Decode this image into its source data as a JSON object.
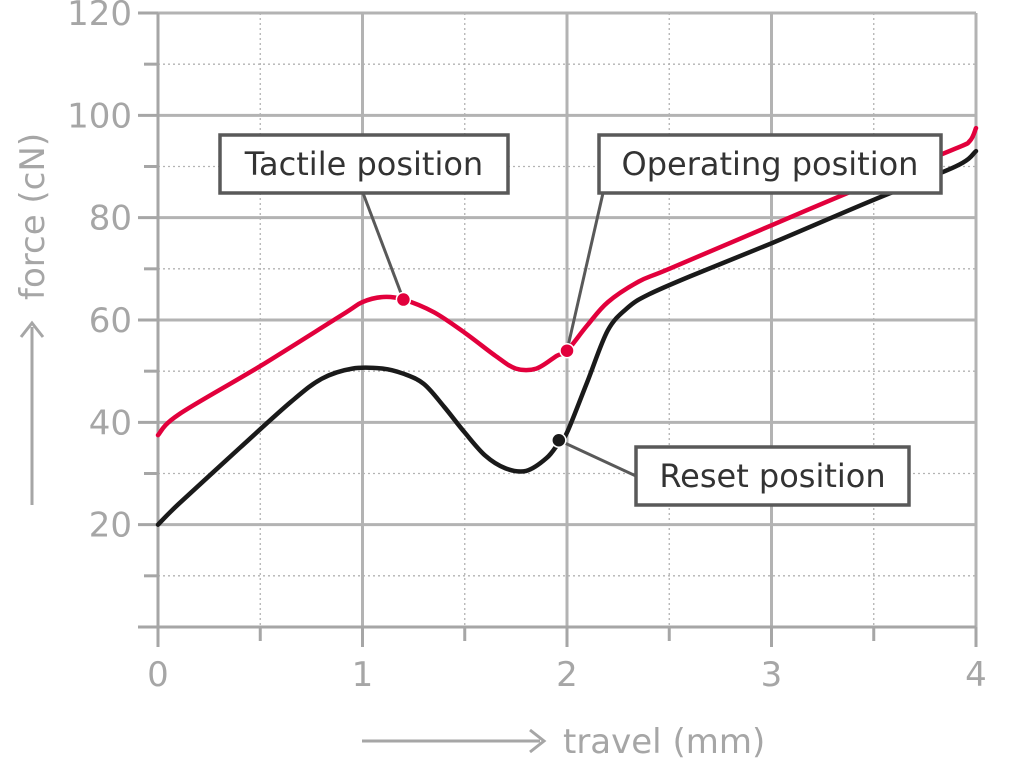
{
  "chart_data": {
    "type": "line",
    "xlabel": "travel (mm)",
    "ylabel": "force (cN)",
    "xlim": [
      0,
      4
    ],
    "ylim": [
      0,
      120
    ],
    "x_ticks": [
      0,
      1,
      2,
      3,
      4
    ],
    "y_ticks": [
      20,
      40,
      60,
      80,
      100,
      120
    ],
    "grid": true,
    "series": [
      {
        "color": "#e2003c",
        "points": [
          [
            0,
            37.5
          ],
          [
            0.1,
            41.5
          ],
          [
            0.5,
            51
          ],
          [
            0.9,
            61
          ],
          [
            1.0,
            63.5
          ],
          [
            1.1,
            64.5
          ],
          [
            1.2,
            64
          ],
          [
            1.35,
            61.5
          ],
          [
            1.5,
            57.5
          ],
          [
            1.65,
            53
          ],
          [
            1.75,
            50.5
          ],
          [
            1.85,
            50.5
          ],
          [
            1.95,
            53
          ],
          [
            2.0,
            54
          ],
          [
            2.1,
            59
          ],
          [
            2.2,
            63.5
          ],
          [
            2.35,
            67.5
          ],
          [
            2.5,
            70
          ],
          [
            3.0,
            78.5
          ],
          [
            3.5,
            87
          ],
          [
            3.9,
            93.5
          ],
          [
            3.97,
            95
          ],
          [
            4.0,
            97.5
          ]
        ]
      },
      {
        "color": "#1a1a1a",
        "points": [
          [
            0,
            20
          ],
          [
            0.1,
            24
          ],
          [
            0.4,
            35
          ],
          [
            0.65,
            44
          ],
          [
            0.8,
            48.5
          ],
          [
            0.95,
            50.5
          ],
          [
            1.1,
            50.5
          ],
          [
            1.2,
            49.5
          ],
          [
            1.3,
            47.5
          ],
          [
            1.4,
            43
          ],
          [
            1.5,
            38
          ],
          [
            1.6,
            33.5
          ],
          [
            1.7,
            31
          ],
          [
            1.8,
            30.5
          ],
          [
            1.9,
            33
          ],
          [
            1.96,
            36
          ],
          [
            2.0,
            38
          ],
          [
            2.1,
            48
          ],
          [
            2.2,
            58
          ],
          [
            2.3,
            62.5
          ],
          [
            2.4,
            65
          ],
          [
            2.6,
            68.5
          ],
          [
            3.0,
            75
          ],
          [
            3.5,
            83.5
          ],
          [
            3.9,
            90
          ],
          [
            4.0,
            93
          ]
        ]
      }
    ],
    "annotations": [
      {
        "label": "Tactile position",
        "x": 1.2,
        "y": 64,
        "color": "#e2003c"
      },
      {
        "label": "Operating position",
        "x": 2.0,
        "y": 54,
        "color": "#e2003c"
      },
      {
        "label": "Reset position",
        "x": 1.96,
        "y": 36.5,
        "color": "#1a1a1a"
      }
    ]
  }
}
